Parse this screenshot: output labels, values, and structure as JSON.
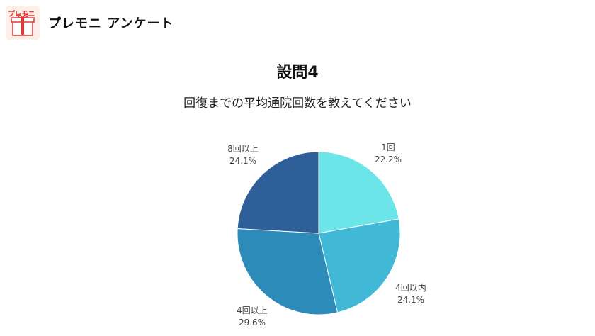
{
  "header": {
    "logo_text": "プレモニ",
    "title": "プレモニ アンケート"
  },
  "question": {
    "title": "設問4",
    "subtitle": "回復までの平均通院回数を教えてください"
  },
  "chart_data": {
    "type": "pie",
    "categories": [
      "1回",
      "4回以内",
      "4回以上",
      "8回以上"
    ],
    "values": [
      22.2,
      24.1,
      29.6,
      24.1
    ],
    "value_labels": [
      "22.2%",
      "24.1%",
      "29.6%",
      "24.1%"
    ],
    "colors": [
      "#6ce5e8",
      "#41b8d5",
      "#2d8bba",
      "#2f5f98"
    ],
    "start": "top",
    "direction": "clockwise"
  }
}
